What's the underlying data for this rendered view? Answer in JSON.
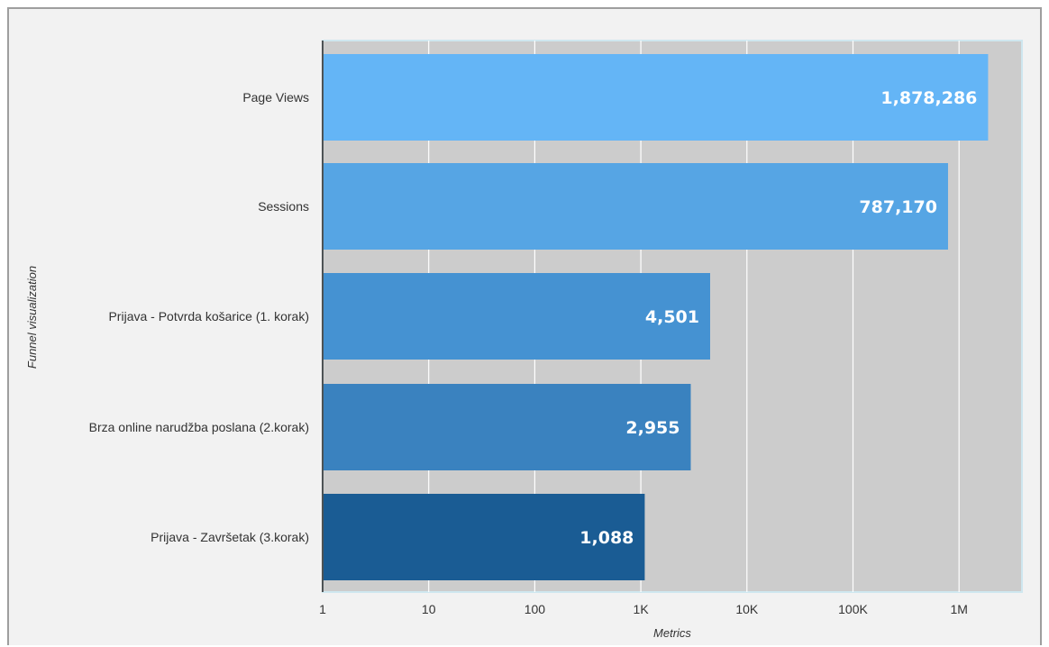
{
  "chart_data": {
    "type": "bar",
    "orientation": "horizontal",
    "scale": "log",
    "categories": [
      "Page Views",
      "Sessions",
      "Prijava - Potvrda košarice (1. korak)",
      "Brza online narudžba poslana (2.korak)",
      "Prijava - Završetak (3.korak)"
    ],
    "values": [
      1878286,
      787170,
      4501,
      2955,
      1088
    ],
    "value_labels": [
      "1,878,286",
      "787,170",
      "4,501",
      "2,955",
      "1,088"
    ],
    "colors": [
      "#64b5f6",
      "#56a5e4",
      "#4592d2",
      "#3a82bf",
      "#1a5c94"
    ],
    "xlabel": "Metrics",
    "ylabel": "Funnel visualization",
    "xlim": [
      1,
      4000000
    ],
    "ticks": [
      1,
      10,
      100,
      1000,
      10000,
      100000,
      1000000
    ],
    "tick_labels": [
      "1",
      "10",
      "100",
      "1K",
      "10K",
      "100K",
      "1M"
    ],
    "grid": true,
    "plot_background": "#cccccc",
    "legend": "none"
  }
}
